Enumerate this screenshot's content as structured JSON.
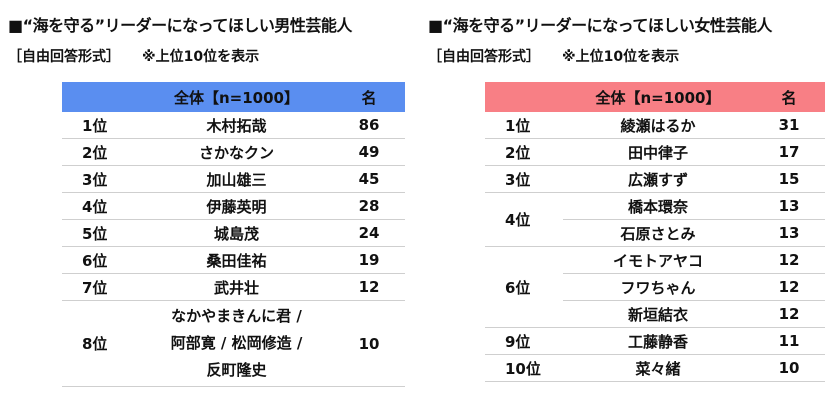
{
  "male": {
    "title": "■“海を守る”リーダーになってほしい男性芸能人",
    "method": "［自由回答形式］",
    "note": "※上位10位を表示",
    "header": {
      "group": "全体【n=1000】",
      "unit": "名"
    },
    "rows": [
      {
        "rank": "1位",
        "names": [
          "木村拓哉"
        ],
        "count": "86"
      },
      {
        "rank": "2位",
        "names": [
          "さかなクン"
        ],
        "count": "49"
      },
      {
        "rank": "3位",
        "names": [
          "加山雄三"
        ],
        "count": "45"
      },
      {
        "rank": "4位",
        "names": [
          "伊藤英明"
        ],
        "count": "28"
      },
      {
        "rank": "5位",
        "names": [
          "城島茂"
        ],
        "count": "24"
      },
      {
        "rank": "6位",
        "names": [
          "桑田佳祐"
        ],
        "count": "19"
      },
      {
        "rank": "7位",
        "names": [
          "武井壮"
        ],
        "count": "12"
      },
      {
        "rank": "8位",
        "names": [
          "なかやまきんに君 /",
          "阿部寛 / 松岡修造 /",
          "反町隆史"
        ],
        "count": "10"
      }
    ]
  },
  "female": {
    "title": "■“海を守る”リーダーになってほしい女性芸能人",
    "method": "［自由回答形式］",
    "note": "※上位10位を表示",
    "header": {
      "group": "全体【n=1000】",
      "unit": "名"
    },
    "rows": [
      {
        "rank": "1位",
        "names": [
          "綾瀬はるか"
        ],
        "counts": [
          "31"
        ]
      },
      {
        "rank": "2位",
        "names": [
          "田中律子"
        ],
        "counts": [
          "17"
        ]
      },
      {
        "rank": "3位",
        "names": [
          "広瀬すず"
        ],
        "counts": [
          "15"
        ]
      },
      {
        "rank": "4位",
        "names": [
          "橋本環奈",
          "石原さとみ"
        ],
        "counts": [
          "13",
          "13"
        ]
      },
      {
        "rank": "6位",
        "names": [
          "イモトアヤコ",
          "フワちゃん",
          "新垣結衣"
        ],
        "counts": [
          "12",
          "12",
          "12"
        ]
      },
      {
        "rank": "9位",
        "names": [
          "工藤静香"
        ],
        "counts": [
          "11"
        ]
      },
      {
        "rank": "10位",
        "names": [
          "菜々緒"
        ],
        "counts": [
          "10"
        ]
      }
    ]
  }
}
